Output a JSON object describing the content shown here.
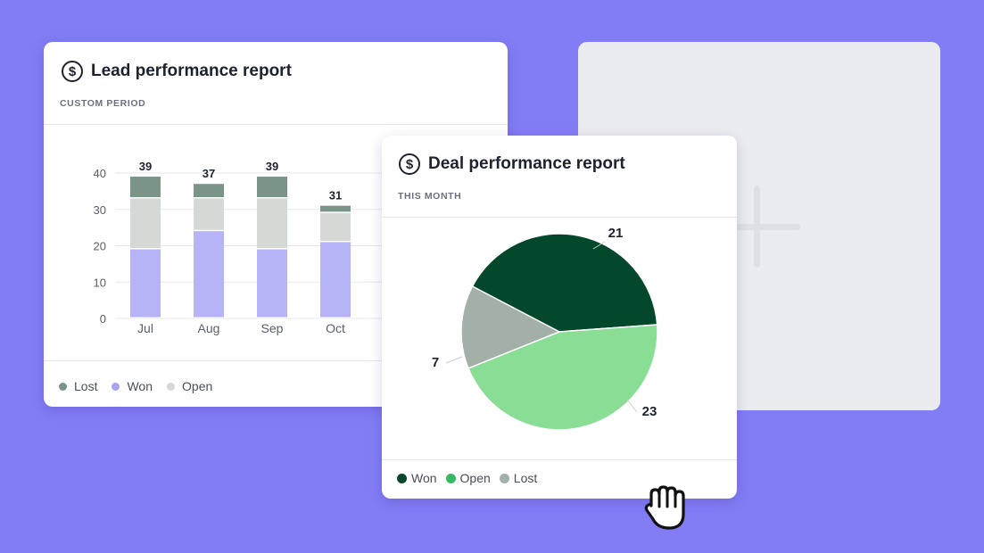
{
  "placeholder": {
    "icon": "plus-icon"
  },
  "lead_report": {
    "title": "Lead performance report",
    "icon": "dollar-circle-icon",
    "period": "CUSTOM PERIOD",
    "legend": [
      {
        "label": "Lost",
        "color": "#7b9488"
      },
      {
        "label": "Won",
        "color": "#a8a3f3"
      },
      {
        "label": "Open",
        "color": "#d5d9d5"
      }
    ]
  },
  "deal_report": {
    "title": "Deal performance report",
    "icon": "dollar-circle-icon",
    "period": "THIS MONTH",
    "legend": [
      {
        "label": "Won",
        "color": "#05482a"
      },
      {
        "label": "Open",
        "color": "#37b865"
      },
      {
        "label": "Lost",
        "color": "#a2b0a8"
      }
    ]
  },
  "cursor": {
    "icon": "grab-hand-icon"
  },
  "chart_data": [
    {
      "type": "bar",
      "stacked": true,
      "categories": [
        "Jul",
        "Aug",
        "Sep",
        "Oct"
      ],
      "series": [
        {
          "name": "Won",
          "values": [
            19,
            24,
            19,
            21
          ],
          "color": "#b6b3f7"
        },
        {
          "name": "Open",
          "values": [
            14,
            9,
            14,
            8
          ],
          "color": "#d5d9d5"
        },
        {
          "name": "Lost",
          "values": [
            6,
            4,
            6,
            2
          ],
          "color": "#7b9488"
        }
      ],
      "totals": [
        "39",
        "37",
        "39",
        "31"
      ],
      "ylim": [
        0,
        40
      ],
      "yticks": [
        "0",
        "10",
        "20",
        "30",
        "40"
      ],
      "grid": true,
      "legend_position": "bottom-left"
    },
    {
      "type": "pie",
      "labels": [
        "Won",
        "Open",
        "Lost"
      ],
      "values": [
        21,
        23,
        7
      ],
      "value_labels": [
        "21",
        "23",
        "7"
      ],
      "colors": [
        "#03482a",
        "#89dd95",
        "#a2b0a8"
      ],
      "legend_position": "bottom-left"
    }
  ]
}
